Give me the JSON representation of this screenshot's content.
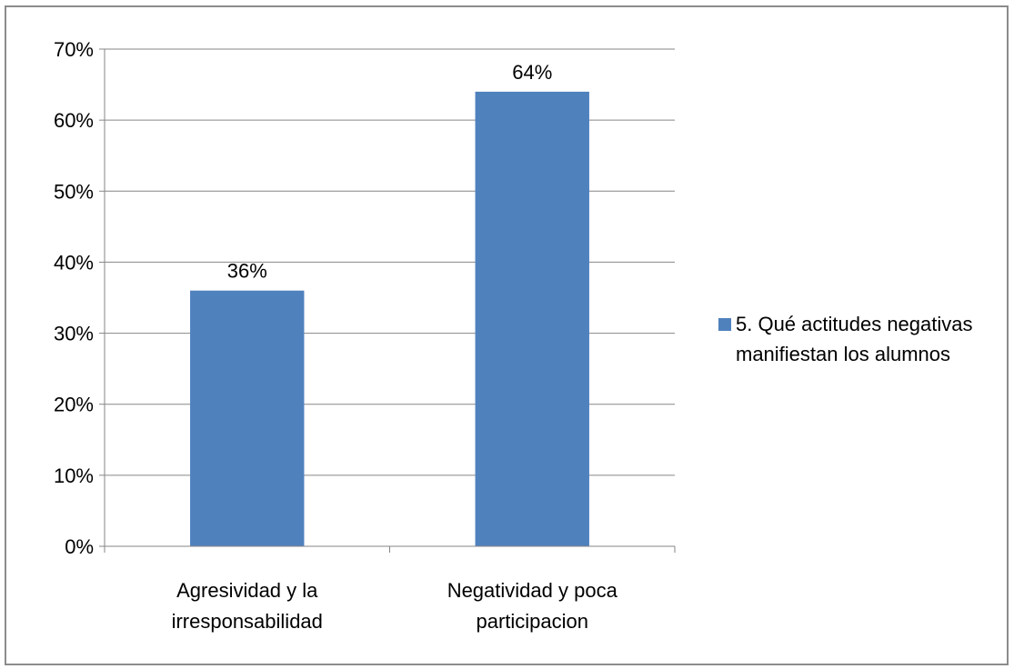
{
  "chart_data": {
    "type": "bar",
    "categories": [
      [
        "Agresividad y la",
        "irresponsabilidad"
      ],
      [
        "Negatividad y poca",
        "participacion"
      ]
    ],
    "series": [
      {
        "name": "5. Qué actitudes negativas manifiestan los alumnos",
        "name_lines": [
          "5. Qué actitudes negativas",
          "manifiestan los alumnos"
        ],
        "values": [
          36,
          64
        ],
        "data_labels": [
          "36%",
          "64%"
        ],
        "color": "#4f81bd"
      }
    ],
    "ylim": [
      0,
      70
    ],
    "yticks": [
      0,
      10,
      20,
      30,
      40,
      50,
      60,
      70
    ],
    "ytick_labels": [
      "0%",
      "10%",
      "20%",
      "30%",
      "40%",
      "50%",
      "60%",
      "70%"
    ],
    "grid": true,
    "gridline_color": "#868686",
    "legend": "right",
    "title": "",
    "xlabel": "",
    "ylabel": ""
  }
}
